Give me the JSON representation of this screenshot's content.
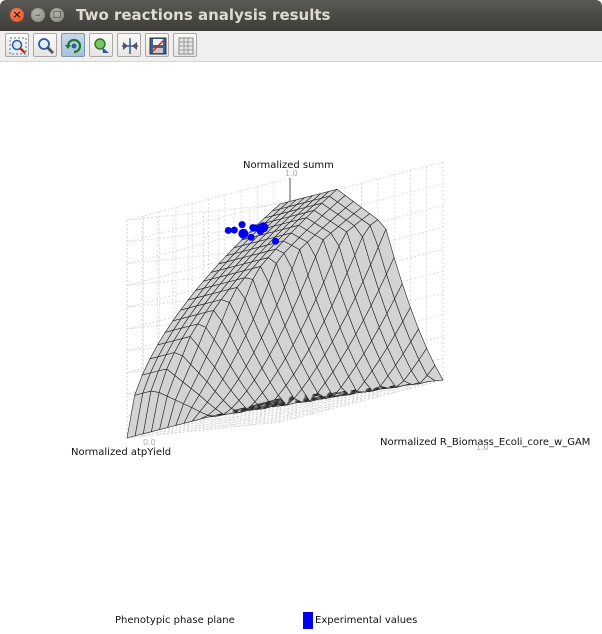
{
  "window": {
    "title": "Two reactions analysis results"
  },
  "window_controls": {
    "close": "×",
    "minimize": "–",
    "maximize": "□"
  },
  "toolbar": {
    "buttons": [
      {
        "name": "zoom-box",
        "icon": "zoom-region-icon"
      },
      {
        "name": "zoom",
        "icon": "magnifier-icon"
      },
      {
        "name": "rotate",
        "icon": "rotate-icon",
        "active": true
      },
      {
        "name": "pan",
        "icon": "move-icon"
      },
      {
        "name": "reset-view",
        "icon": "arrows-center-icon"
      },
      {
        "name": "save",
        "icon": "save-disk-icon"
      },
      {
        "name": "table",
        "icon": "grid-table-icon"
      }
    ]
  },
  "chart_data": {
    "type": "surface3d",
    "zlabel": "Normalized summ",
    "xlabel": "Normalized R_Biomass_Ecoli_core_w_GAM",
    "ylabel": "Normalized atpYield",
    "tick_labels": {
      "z_top": "1.0",
      "y_near": "0.0",
      "x_far": "1.0"
    },
    "x_range": [
      0,
      1
    ],
    "y_range": [
      0,
      1
    ],
    "z_range": [
      0,
      1
    ],
    "grid": true,
    "series": [
      {
        "name": "Phenotypic phase plane",
        "kind": "surface",
        "color": "#d0d0d0"
      },
      {
        "name": "Experimental values",
        "kind": "scatter",
        "color": "#0000ee"
      }
    ]
  },
  "legend": {
    "items": [
      {
        "label": "Phenotypic phase plane"
      },
      {
        "label": "Experimental values",
        "color": "#0000ee"
      }
    ]
  }
}
